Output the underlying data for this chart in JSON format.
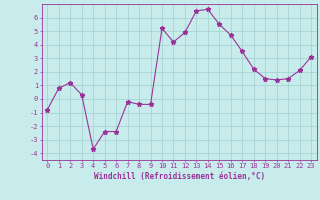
{
  "x": [
    0,
    1,
    2,
    3,
    4,
    5,
    6,
    7,
    8,
    9,
    10,
    11,
    12,
    13,
    14,
    15,
    16,
    17,
    18,
    19,
    20,
    21,
    22,
    23
  ],
  "y": [
    -0.8,
    0.8,
    1.2,
    0.3,
    -3.7,
    -2.4,
    -2.4,
    -0.2,
    -0.4,
    -0.4,
    5.2,
    4.2,
    4.9,
    6.5,
    6.6,
    5.5,
    4.7,
    3.5,
    2.2,
    1.5,
    1.4,
    1.5,
    2.1,
    3.1
  ],
  "line_color": "#993399",
  "marker": "*",
  "bg_color": "#c8ecec",
  "grid_color": "#a0d0d0",
  "xlabel": "Windchill (Refroidissement éolien,°C)",
  "ylim": [
    -4.5,
    7.0
  ],
  "xlim": [
    -0.5,
    23.5
  ],
  "yticks": [
    -4,
    -3,
    -2,
    -1,
    0,
    1,
    2,
    3,
    4,
    5,
    6
  ],
  "xticks": [
    0,
    1,
    2,
    3,
    4,
    5,
    6,
    7,
    8,
    9,
    10,
    11,
    12,
    13,
    14,
    15,
    16,
    17,
    18,
    19,
    20,
    21,
    22,
    23
  ],
  "tick_fontsize": 5.0,
  "xlabel_fontsize": 5.5,
  "linewidth": 0.8,
  "markersize": 3.5
}
